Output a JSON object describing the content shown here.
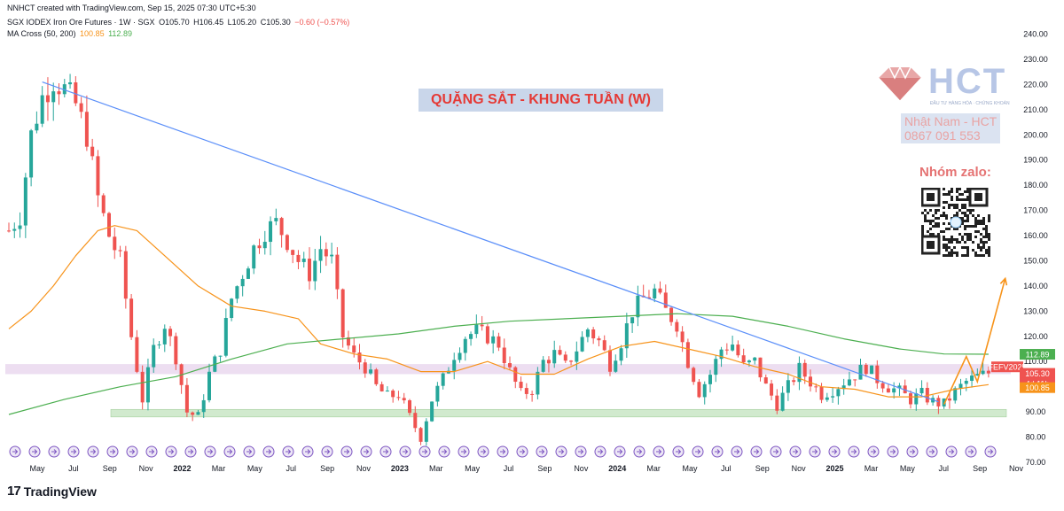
{
  "header": {
    "line1": "NNHCT created with TradingView.com, Sep 15, 2025 07:30 UTC+5:30",
    "symbol": "SGX IODEX Iron Ore Futures · 1W · SGX",
    "o": "O105.70",
    "h": "H106.45",
    "l": "L105.20",
    "c": "C105.30",
    "chg": "−0.60 (−0.57%)",
    "ma_name": "MA Cross (50, 200)",
    "ma50": "100.85",
    "ma200": "112.89"
  },
  "overlay": {
    "title": "QUẶNG SẮT - KHUNG TUẦN (W)",
    "brand": "HCT",
    "brand_tagline": "ĐẦU TƯ HÀNG HÓA · CHỨNG KHOÁN",
    "contact_name": "Nhật Nam - HCT",
    "contact_phone": "0867 091 553",
    "zalo_label": "Nhóm zalo:"
  },
  "price_tags": {
    "ma200": "112.89",
    "symbol_tag": "FEFV2025",
    "last": "105.30",
    "countdown": "4d 11h",
    "ma50": "100.85"
  },
  "footer": {
    "brand": "TradingView"
  },
  "colors": {
    "up": "#26a69a",
    "down": "#ef5350",
    "ma50": "#f7931a",
    "ma200": "#4caf50",
    "trendline": "#5b8ff9",
    "arrow": "#f7931a",
    "zone_resist": "#e8d6ee",
    "zone_support": "#cde8c9",
    "title_bg": "#c9d6ea",
    "title_fg": "#e53935",
    "event": "#7e57c2"
  },
  "chart_data": {
    "type": "candlestick",
    "title": "SGX IODEX Iron Ore Futures · 1W · SGX",
    "y_ticks": [
      70,
      80,
      90,
      100,
      110,
      120,
      130,
      140,
      150,
      160,
      170,
      180,
      190,
      200,
      210,
      220,
      230,
      240
    ],
    "ylim": [
      70,
      243
    ],
    "x_ticks": [
      "May",
      "Jul",
      "Sep",
      "Nov",
      "2022",
      "Mar",
      "May",
      "Jul",
      "Sep",
      "Nov",
      "2023",
      "Mar",
      "May",
      "Jul",
      "Sep",
      "Nov",
      "2024",
      "Mar",
      "May",
      "Jul",
      "Sep",
      "Nov",
      "2025",
      "Mar",
      "May",
      "Jul",
      "Sep",
      "Nov"
    ],
    "x_tick_bold": [
      "2022",
      "2023",
      "2024",
      "2025"
    ],
    "price_path": [
      [
        0,
        162
      ],
      [
        2,
        168
      ],
      [
        4,
        200
      ],
      [
        6,
        215
      ],
      [
        8,
        222
      ],
      [
        10,
        218
      ],
      [
        12,
        212
      ],
      [
        14,
        200
      ],
      [
        16,
        175
      ],
      [
        18,
        160
      ],
      [
        20,
        150
      ],
      [
        22,
        120
      ],
      [
        24,
        95
      ],
      [
        26,
        115
      ],
      [
        28,
        125
      ],
      [
        30,
        112
      ],
      [
        32,
        90
      ],
      [
        34,
        88
      ],
      [
        36,
        105
      ],
      [
        38,
        115
      ],
      [
        40,
        135
      ],
      [
        42,
        145
      ],
      [
        44,
        155
      ],
      [
        46,
        162
      ],
      [
        48,
        165
      ],
      [
        50,
        158
      ],
      [
        52,
        150
      ],
      [
        54,
        145
      ],
      [
        56,
        155
      ],
      [
        58,
        150
      ],
      [
        60,
        120
      ],
      [
        62,
        112
      ],
      [
        64,
        108
      ],
      [
        66,
        100
      ],
      [
        68,
        96
      ],
      [
        70,
        97
      ],
      [
        72,
        88
      ],
      [
        74,
        80
      ],
      [
        76,
        95
      ],
      [
        78,
        103
      ],
      [
        80,
        113
      ],
      [
        82,
        120
      ],
      [
        84,
        122
      ],
      [
        86,
        120
      ],
      [
        88,
        117
      ],
      [
        90,
        106
      ],
      [
        92,
        97
      ],
      [
        94,
        99
      ],
      [
        96,
        110
      ],
      [
        98,
        113
      ],
      [
        100,
        108
      ],
      [
        102,
        115
      ],
      [
        104,
        123
      ],
      [
        106,
        118
      ],
      [
        108,
        109
      ],
      [
        110,
        118
      ],
      [
        112,
        130
      ],
      [
        114,
        135
      ],
      [
        116,
        138
      ],
      [
        118,
        130
      ],
      [
        120,
        125
      ],
      [
        122,
        110
      ],
      [
        124,
        98
      ],
      [
        126,
        105
      ],
      [
        128,
        115
      ],
      [
        130,
        117
      ],
      [
        132,
        108
      ],
      [
        134,
        110
      ],
      [
        136,
        100
      ],
      [
        138,
        93
      ],
      [
        140,
        100
      ],
      [
        142,
        107
      ],
      [
        144,
        102
      ],
      [
        146,
        97
      ],
      [
        148,
        99
      ],
      [
        150,
        102
      ],
      [
        152,
        105
      ],
      [
        154,
        108
      ],
      [
        156,
        103
      ],
      [
        158,
        100
      ],
      [
        160,
        98
      ],
      [
        162,
        95
      ],
      [
        164,
        97
      ],
      [
        166,
        94
      ],
      [
        168,
        93
      ],
      [
        170,
        98
      ],
      [
        172,
        102
      ],
      [
        174,
        104
      ],
      [
        176,
        105.3
      ]
    ],
    "ma50_path": [
      [
        0,
        123
      ],
      [
        4,
        130
      ],
      [
        8,
        140
      ],
      [
        12,
        152
      ],
      [
        16,
        162
      ],
      [
        19,
        164
      ],
      [
        23,
        162
      ],
      [
        28,
        152
      ],
      [
        34,
        140
      ],
      [
        40,
        132
      ],
      [
        46,
        130
      ],
      [
        52,
        127
      ],
      [
        56,
        117
      ],
      [
        62,
        113
      ],
      [
        68,
        111
      ],
      [
        74,
        106
      ],
      [
        80,
        106
      ],
      [
        86,
        110
      ],
      [
        92,
        105
      ],
      [
        98,
        105
      ],
      [
        104,
        111
      ],
      [
        110,
        116
      ],
      [
        116,
        118
      ],
      [
        122,
        115
      ],
      [
        128,
        112
      ],
      [
        134,
        108
      ],
      [
        140,
        105
      ],
      [
        146,
        100
      ],
      [
        152,
        99
      ],
      [
        158,
        96
      ],
      [
        164,
        96
      ],
      [
        170,
        99
      ],
      [
        176,
        100.85
      ]
    ],
    "ma200_path": [
      [
        0,
        89
      ],
      [
        10,
        95
      ],
      [
        20,
        100
      ],
      [
        30,
        104
      ],
      [
        40,
        111
      ],
      [
        50,
        117
      ],
      [
        60,
        119
      ],
      [
        70,
        121
      ],
      [
        80,
        124
      ],
      [
        90,
        126
      ],
      [
        100,
        127
      ],
      [
        110,
        128
      ],
      [
        120,
        129
      ],
      [
        130,
        128
      ],
      [
        140,
        124
      ],
      [
        150,
        119
      ],
      [
        160,
        115
      ],
      [
        168,
        113
      ],
      [
        176,
        112.89
      ]
    ],
    "trendline": [
      [
        6,
        221
      ],
      [
        167,
        94
      ]
    ],
    "resistance_zone": [
      105,
      109
    ],
    "support_zone": [
      88,
      91
    ],
    "projection_arrow": [
      [
        168,
        93
      ],
      [
        172,
        112
      ],
      [
        174,
        102
      ],
      [
        179,
        143
      ]
    ],
    "last_price": 105.3,
    "ma50_last": 100.85,
    "ma200_last": 112.89
  }
}
